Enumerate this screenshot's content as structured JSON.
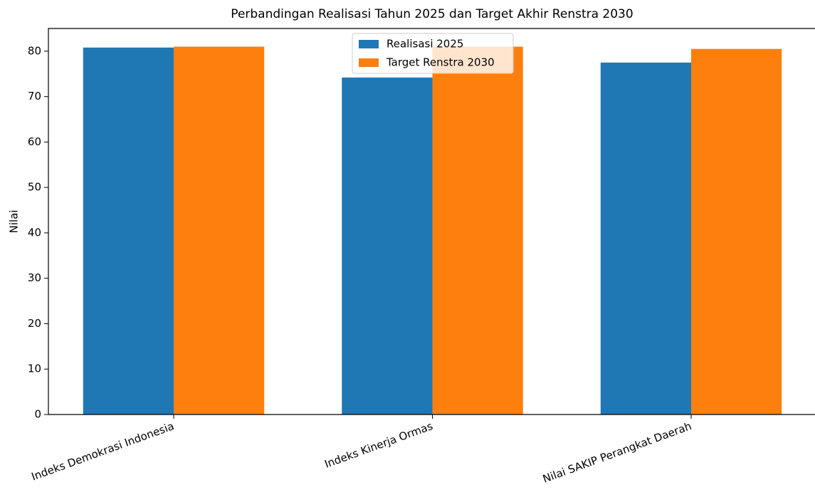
{
  "chart_data": {
    "type": "bar",
    "title": "Perbandingan Realisasi Tahun 2025 dan Target Akhir Renstra 2030",
    "y_label": "Nilai",
    "categories": [
      "Indeks Demokrasi Indonesia",
      "Indeks Kinerja Ormas",
      "Nilai SAKIP Perangkat Daerah"
    ],
    "series": [
      {
        "name": "Realisasi 2025",
        "color": "#1f77b4",
        "values": [
          80.8,
          74.2,
          77.5
        ]
      },
      {
        "name": "Target Renstra 2030",
        "color": "#ff7f0e",
        "values": [
          81,
          81,
          80.5
        ]
      }
    ],
    "ylim": [
      0,
      85
    ],
    "yticks": [
      0,
      10,
      20,
      30,
      40,
      50,
      60,
      70,
      80
    ],
    "legend": "upper center"
  }
}
